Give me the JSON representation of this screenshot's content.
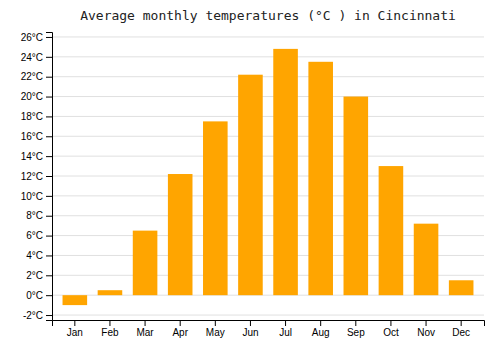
{
  "chart_data": {
    "type": "bar",
    "title": "Average monthly temperatures (°C ) in Cincinnati",
    "categories": [
      "Jan",
      "Feb",
      "Mar",
      "Apr",
      "May",
      "Jun",
      "Jul",
      "Aug",
      "Sep",
      "Oct",
      "Nov",
      "Dec"
    ],
    "values": [
      -1.0,
      0.5,
      6.5,
      12.2,
      17.5,
      22.2,
      24.8,
      23.5,
      20.0,
      13.0,
      7.2,
      1.5
    ],
    "color": "#FFA500",
    "ylim": [
      -2.5,
      26.5
    ],
    "yticks": [
      {
        "value": -2,
        "label": "-2°C"
      },
      {
        "value": 0,
        "label": "0°C"
      },
      {
        "value": 2,
        "label": "2°C"
      },
      {
        "value": 4,
        "label": "4°C"
      },
      {
        "value": 6,
        "label": "6°C"
      },
      {
        "value": 8,
        "label": "8°C"
      },
      {
        "value": 10,
        "label": "10°C"
      },
      {
        "value": 12,
        "label": "12°C"
      },
      {
        "value": 14,
        "label": "14°C"
      },
      {
        "value": 16,
        "label": "16°C"
      },
      {
        "value": 18,
        "label": "18°C"
      },
      {
        "value": 20,
        "label": "20°C"
      },
      {
        "value": 22,
        "label": "22°C"
      },
      {
        "value": 24,
        "label": "24°C"
      },
      {
        "value": 26,
        "label": "26°C"
      }
    ],
    "grid": true
  }
}
